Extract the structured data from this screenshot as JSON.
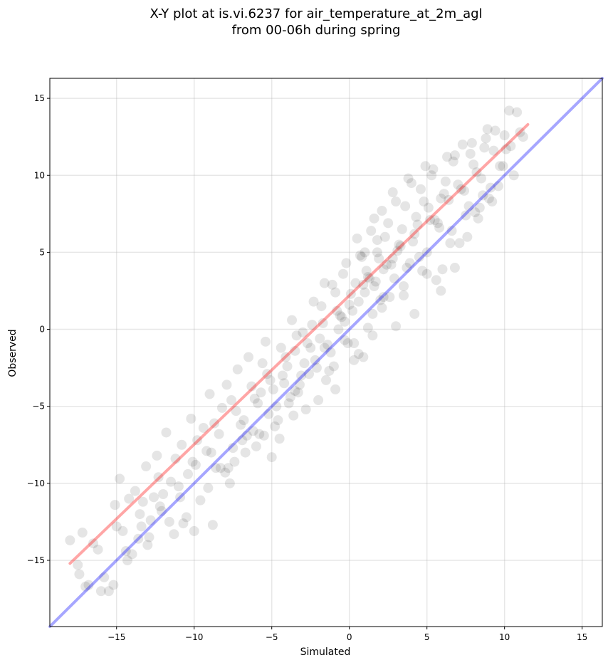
{
  "chart_data": {
    "type": "scatter",
    "title_line1": "X-Y plot at is.vi.6237 for air_temperature_at_2m_agl",
    "title_line2": "from 00-06h during spring",
    "xlabel": "Simulated",
    "ylabel": "Observed",
    "xlim": [
      -19.3,
      16.3
    ],
    "ylim": [
      -19.3,
      16.3
    ],
    "xticks": [
      -15,
      -10,
      -5,
      0,
      5,
      10,
      15
    ],
    "yticks": [
      -15,
      -10,
      -5,
      0,
      5,
      10,
      15
    ],
    "xtick_labels": [
      "−15",
      "−10",
      "−5",
      "0",
      "5",
      "10",
      "15"
    ],
    "ytick_labels": [
      "−15",
      "−10",
      "−5",
      "0",
      "5",
      "10",
      "15"
    ],
    "grid": true,
    "point_color": "#000000",
    "point_alpha": 0.1,
    "identity_line": {
      "x": [
        -19.3,
        16.3
      ],
      "y": [
        -19.3,
        16.3
      ],
      "color": "#0000ff",
      "alpha": 0.35
    },
    "fit_line": {
      "x": [
        -18.0,
        11.5
      ],
      "y": [
        -15.2,
        13.3
      ],
      "color": "#ff0000",
      "alpha": 0.35
    },
    "points_x": [
      -18.0,
      -17.5,
      -17.2,
      -16.8,
      -16.2,
      -15.8,
      -15.1,
      -14.8,
      -14.6,
      -14.2,
      -13.8,
      -13.5,
      -13.1,
      -12.9,
      -12.6,
      -12.3,
      -12.1,
      -11.8,
      -11.5,
      -11.2,
      -10.8,
      -10.5,
      -10.2,
      -9.8,
      -9.4,
      -9.0,
      -8.6,
      -8.2,
      -7.9,
      -7.5,
      -7.2,
      -6.8,
      -6.5,
      -6.1,
      -5.8,
      -5.4,
      -5.1,
      -4.7,
      -4.4,
      -4.0,
      -3.7,
      -3.3,
      -3.0,
      -2.6,
      -2.3,
      -1.9,
      -1.6,
      -1.2,
      -0.9,
      -0.5,
      -0.2,
      0.2,
      0.5,
      0.9,
      1.2,
      1.6,
      1.9,
      2.3,
      2.6,
      3.0,
      3.3,
      3.7,
      4.0,
      4.4,
      4.7,
      5.1,
      5.4,
      5.8,
      6.1,
      6.5,
      6.8,
      7.2,
      7.5,
      7.9,
      8.2,
      8.6,
      8.9,
      9.3,
      9.6,
      10.0,
      10.4,
      10.8,
      11.2,
      -17.4,
      -15.0,
      -13.0,
      -12.4,
      -11.0,
      -10.7,
      -10.1,
      -9.1,
      -8.7,
      -8.0,
      -7.6,
      -7.0,
      -6.3,
      -6.0,
      -5.6,
      -5.2,
      -4.9,
      -4.5,
      -4.1,
      -3.8,
      -3.4,
      -3.1,
      -2.8,
      -2.4,
      -2.1,
      -1.8,
      -1.4,
      -1.1,
      -0.7,
      -0.4,
      0.0,
      0.3,
      0.7,
      1.0,
      1.4,
      1.7,
      2.1,
      2.4,
      2.8,
      3.1,
      3.5,
      3.8,
      4.2,
      4.5,
      4.9,
      5.2,
      5.6,
      5.9,
      6.3,
      6.6,
      7.0,
      7.3,
      7.7,
      8.0,
      8.4,
      8.7,
      9.1,
      9.4,
      9.9,
      10.3,
      -16.5,
      -14.3,
      -13.3,
      -11.6,
      -10.4,
      -9.6,
      -8.9,
      -8.4,
      -7.7,
      -7.3,
      -6.7,
      -6.2,
      -5.7,
      -5.3,
      -4.8,
      -4.3,
      -3.9,
      -3.5,
      -3.2,
      -2.7,
      -2.2,
      -1.7,
      -1.3,
      -0.8,
      -0.3,
      0.1,
      0.6,
      1.1,
      1.5,
      1.8,
      2.2,
      2.5,
      2.9,
      3.2,
      3.6,
      3.9,
      4.3,
      4.6,
      5.0,
      5.3,
      5.7,
      6.0,
      6.4,
      6.7,
      7.1,
      7.4,
      7.8,
      8.1,
      8.5,
      8.8,
      9.2,
      9.7,
      10.1,
      10.6,
      11.0,
      0.8,
      1.3,
      1.8,
      2.7,
      3.4,
      2.0,
      1.0,
      0.4,
      -0.6,
      4.1,
      4.8,
      5.5,
      6.2,
      3.0,
      2.2,
      1.5,
      0.6,
      -0.1,
      -1.0,
      -1.5,
      -2.5,
      -3.5,
      -4.6,
      -5.5,
      -6.6,
      -7.4,
      -8.3,
      -9.2,
      -10.0,
      -11.3,
      -12.0,
      -12.8,
      -13.6,
      -14.4,
      -15.2,
      -16.0,
      -17.0,
      6.8,
      7.6,
      8.3,
      9.0,
      5.9,
      5.0,
      4.2,
      3.5,
      2.8,
      2.1,
      1.6,
      1.2,
      0.9,
      0.3,
      -0.3,
      -0.9,
      -1.6,
      -2.0,
      -2.9,
      -3.6,
      -4.2,
      -5.0,
      -5.9,
      -6.9,
      -7.8,
      -8.8,
      -9.9,
      -10.9,
      -12.2,
      -13.4,
      -14.0,
      -15.5
    ],
    "points_y": [
      -13.7,
      -15.3,
      -13.2,
      -16.6,
      -14.3,
      -16.1,
      -11.4,
      -9.7,
      -13.1,
      -11.0,
      -10.5,
      -12.0,
      -8.9,
      -13.5,
      -10.9,
      -9.6,
      -11.8,
      -6.7,
      -9.9,
      -8.4,
      -7.5,
      -12.2,
      -5.8,
      -7.2,
      -6.4,
      -4.2,
      -9.0,
      -5.1,
      -3.6,
      -7.7,
      -2.6,
      -5.9,
      -1.8,
      -4.5,
      -6.8,
      -0.8,
      -3.3,
      -5.0,
      -1.2,
      -2.4,
      0.6,
      -4.1,
      -0.2,
      -2.9,
      1.8,
      -0.6,
      3.0,
      -1.5,
      2.4,
      0.8,
      4.3,
      1.2,
      5.9,
      2.9,
      3.4,
      7.2,
      4.6,
      6.0,
      2.1,
      8.3,
      5.4,
      4.0,
      9.5,
      6.8,
      3.8,
      7.9,
      10.4,
      6.6,
      8.8,
      5.6,
      11.3,
      9.1,
      7.4,
      12.1,
      10.2,
      8.7,
      13.0,
      11.6,
      9.3,
      12.6,
      11.9,
      14.1,
      12.5,
      -15.9,
      -12.8,
      -14.0,
      -8.2,
      -10.2,
      -12.6,
      -8.6,
      -10.3,
      -6.1,
      -9.3,
      -4.6,
      -6.2,
      -3.7,
      -7.6,
      -2.2,
      -5.5,
      -3.9,
      -7.1,
      -1.8,
      -4.4,
      -0.4,
      -3.0,
      -5.2,
      0.3,
      -2.5,
      1.5,
      -1.0,
      2.9,
      0.0,
      3.6,
      1.6,
      -0.9,
      4.8,
      2.4,
      6.4,
      3.1,
      7.7,
      4.2,
      8.9,
      5.1,
      2.8,
      9.8,
      6.2,
      4.7,
      10.6,
      7.1,
      3.2,
      8.5,
      11.2,
      6.4,
      9.4,
      12.0,
      8.0,
      10.7,
      7.9,
      11.8,
      9.2,
      12.9,
      10.6,
      14.2,
      -13.9,
      -15.0,
      -11.2,
      -12.5,
      -9.4,
      -11.1,
      -8.0,
      -6.8,
      -10.0,
      -5.3,
      -8.0,
      -6.6,
      -4.1,
      -2.9,
      -6.3,
      -3.0,
      -4.8,
      -1.4,
      -3.6,
      -0.9,
      -2.0,
      0.4,
      -2.7,
      1.2,
      -0.7,
      2.3,
      -1.6,
      3.8,
      1.0,
      5.0,
      2.1,
      6.9,
      3.3,
      5.5,
      8.0,
      4.3,
      7.3,
      9.1,
      5.0,
      10.0,
      6.9,
      3.9,
      8.4,
      10.9,
      5.6,
      9.0,
      11.4,
      7.6,
      9.8,
      12.4,
      8.3,
      10.6,
      11.7,
      10.0,
      12.8,
      4.7,
      3.3,
      5.8,
      4.2,
      6.5,
      1.9,
      5.0,
      3.0,
      0.9,
      5.7,
      8.3,
      7.1,
      9.6,
      0.2,
      3.9,
      -0.4,
      1.8,
      -0.9,
      -2.4,
      -3.3,
      -1.2,
      -4.0,
      -5.9,
      -6.9,
      -6.9,
      -8.6,
      -9.0,
      -7.9,
      -13.1,
      -13.3,
      -10.7,
      -12.4,
      -13.6,
      -14.4,
      -16.6,
      -17.0,
      -16.7,
      4.0,
      6.0,
      7.2,
      8.5,
      2.5,
      3.6,
      1.0,
      2.2,
      4.6,
      1.4,
      2.8,
      0.1,
      -1.8,
      -2.0,
      0.5,
      -3.9,
      -1.2,
      -4.6,
      -2.2,
      -5.6,
      -3.5,
      -8.3,
      -4.8,
      -7.2,
      -9.0,
      -12.7,
      -8.8,
      -10.9,
      -11.5,
      -12.8,
      -14.6,
      -17.0
    ]
  }
}
